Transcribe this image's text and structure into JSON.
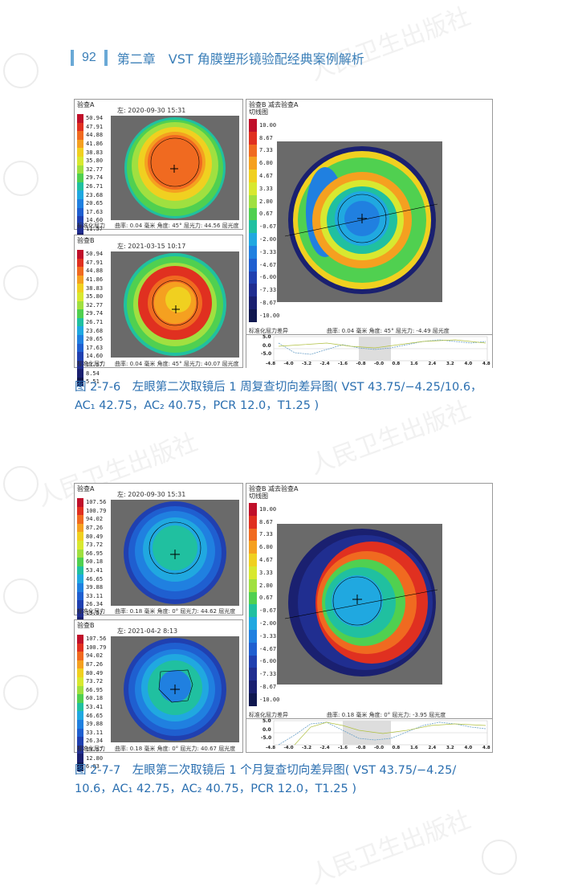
{
  "header": {
    "page_number": "92",
    "chapter": "第二章　VST 角膜塑形镜验配经典案例解析"
  },
  "watermark": "人民卫生出版社",
  "figures": [
    {
      "left_top": {
        "title": "验查A",
        "date": "左: 2020-09-30 15:31",
        "footer": "曲率: 0.04 毫米 角度: 45° 屈光力: 44.56 屈光度",
        "unit_label": "标准化屈力"
      },
      "left_bottom": {
        "title": "验查B",
        "date": "左: 2021-03-15 10:17",
        "footer": "曲率: 0.04 毫米 角度: 45° 屈光力: 40.07 屈光度",
        "unit_label": "标准化屈力"
      },
      "right": {
        "title": "验查B 减去验查A",
        "subtitle": "切线图",
        "footer": "曲率: 0.04 毫米 角度: 45° 屈光力: -4.49 屈光度",
        "unit_label": "标准化屈力差异"
      },
      "legend_abs": [
        "50.94",
        "47.91",
        "44.88",
        "41.86",
        "38.83",
        "35.80",
        "32.77",
        "29.74",
        "26.71",
        "23.68",
        "20.65",
        "17.63",
        "14.60",
        "11.57",
        "8.54",
        "5.51"
      ],
      "legend_diff": [
        "10.00",
        "8.67",
        "7.33",
        "6.00",
        "4.67",
        "3.33",
        "2.00",
        "0.67",
        "-0.67",
        "-2.00",
        "-3.33",
        "-4.67",
        "-6.00",
        "-7.33",
        "-8.67",
        "-10.00"
      ],
      "graph_y": [
        "5.0",
        "0.0",
        "-5.0"
      ],
      "graph_x": [
        "-4.8",
        "-4.0",
        "-3.2",
        "-2.4",
        "-1.6",
        "-0.8",
        "-0.0",
        "0.8",
        "1.6",
        "2.4",
        "3.2",
        "4.0",
        "4.8"
      ],
      "caption_line1": "图 2-7-6　左眼第二次取镜后 1 周复查切向差异图( VST 43.75/−4.25/10.6，",
      "caption_line2": "AC₁ 42.75，AC₂ 40.75，PCR 12.0，T1.25 )"
    },
    {
      "left_top": {
        "title": "验查A",
        "date": "左: 2020-09-30 15:31",
        "footer": "曲率: 0.18 毫米 角度: 0° 屈光力: 44.62 屈光度",
        "unit_label": "标准化屈力"
      },
      "left_bottom": {
        "title": "验查B",
        "date": "左: 2021-04-2 8:13",
        "footer": "曲率: 0.18 毫米 角度: 0° 屈光力: 40.67 屈光度",
        "unit_label": "标准化屈力"
      },
      "right": {
        "title": "验查B 减去验查A",
        "subtitle": "切线图",
        "footer": "曲率: 0.18 毫米 角度: 0° 屈光力: -3.95 屈光度",
        "unit_label": "标准化屈力差异"
      },
      "legend_abs": [
        "107.56",
        "100.79",
        "94.02",
        "87.26",
        "80.49",
        "73.72",
        "66.95",
        "60.18",
        "53.41",
        "46.65",
        "39.88",
        "33.11",
        "26.34",
        "19.57",
        "12.80",
        "6.03"
      ],
      "legend_diff": [
        "10.00",
        "8.67",
        "7.33",
        "6.00",
        "4.67",
        "3.33",
        "2.00",
        "0.67",
        "-0.67",
        "-2.00",
        "-3.33",
        "-4.67",
        "-6.00",
        "-7.33",
        "-8.67",
        "-10.00"
      ],
      "graph_y": [
        "5.0",
        "0.0",
        "-5.0"
      ],
      "graph_x": [
        "-4.8",
        "-4.0",
        "-3.2",
        "-2.4",
        "-1.6",
        "-0.8",
        "-0.0",
        "0.8",
        "1.6",
        "2.4",
        "3.2",
        "4.0",
        "4.8"
      ],
      "caption_line1": "图 2-7-7　左眼第二次取镜后 1 个月复查切向差异图( VST 43.75/−4.25/",
      "caption_line2": "10.6，AC₁ 42.75，AC₂ 40.75，PCR 12.0，T1.25 )"
    }
  ],
  "colors": {
    "scale": [
      "#c0102a",
      "#e03020",
      "#f06a20",
      "#f5a020",
      "#f0d020",
      "#d8e830",
      "#a0e040",
      "#50d050",
      "#20c0a0",
      "#20a8e0",
      "#2080e0",
      "#1f5fd0",
      "#2040b0",
      "#202e90",
      "#1a2070",
      "#10184f"
    ],
    "caption": "#2b6fb0"
  }
}
